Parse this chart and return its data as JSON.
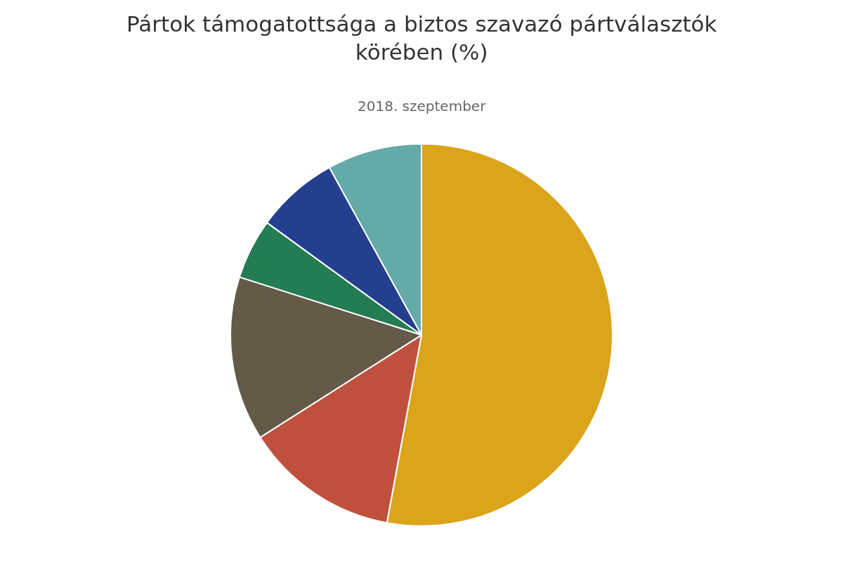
{
  "chart_data": {
    "type": "pie",
    "title": "Pártok támogatottsága a biztos szavazó pártválasztók körében (%)",
    "subtitle": "2018. szeptember",
    "categories": [
      null,
      null,
      null,
      null,
      null,
      null
    ],
    "values": [
      52.9,
      13.1,
      13.9,
      5.1,
      7.0,
      8.0
    ],
    "colors": [
      "#daa41b",
      "#c0503e",
      "#635a48",
      "#247c52",
      "#233f8e",
      "#63aaa8"
    ],
    "legend": false
  }
}
